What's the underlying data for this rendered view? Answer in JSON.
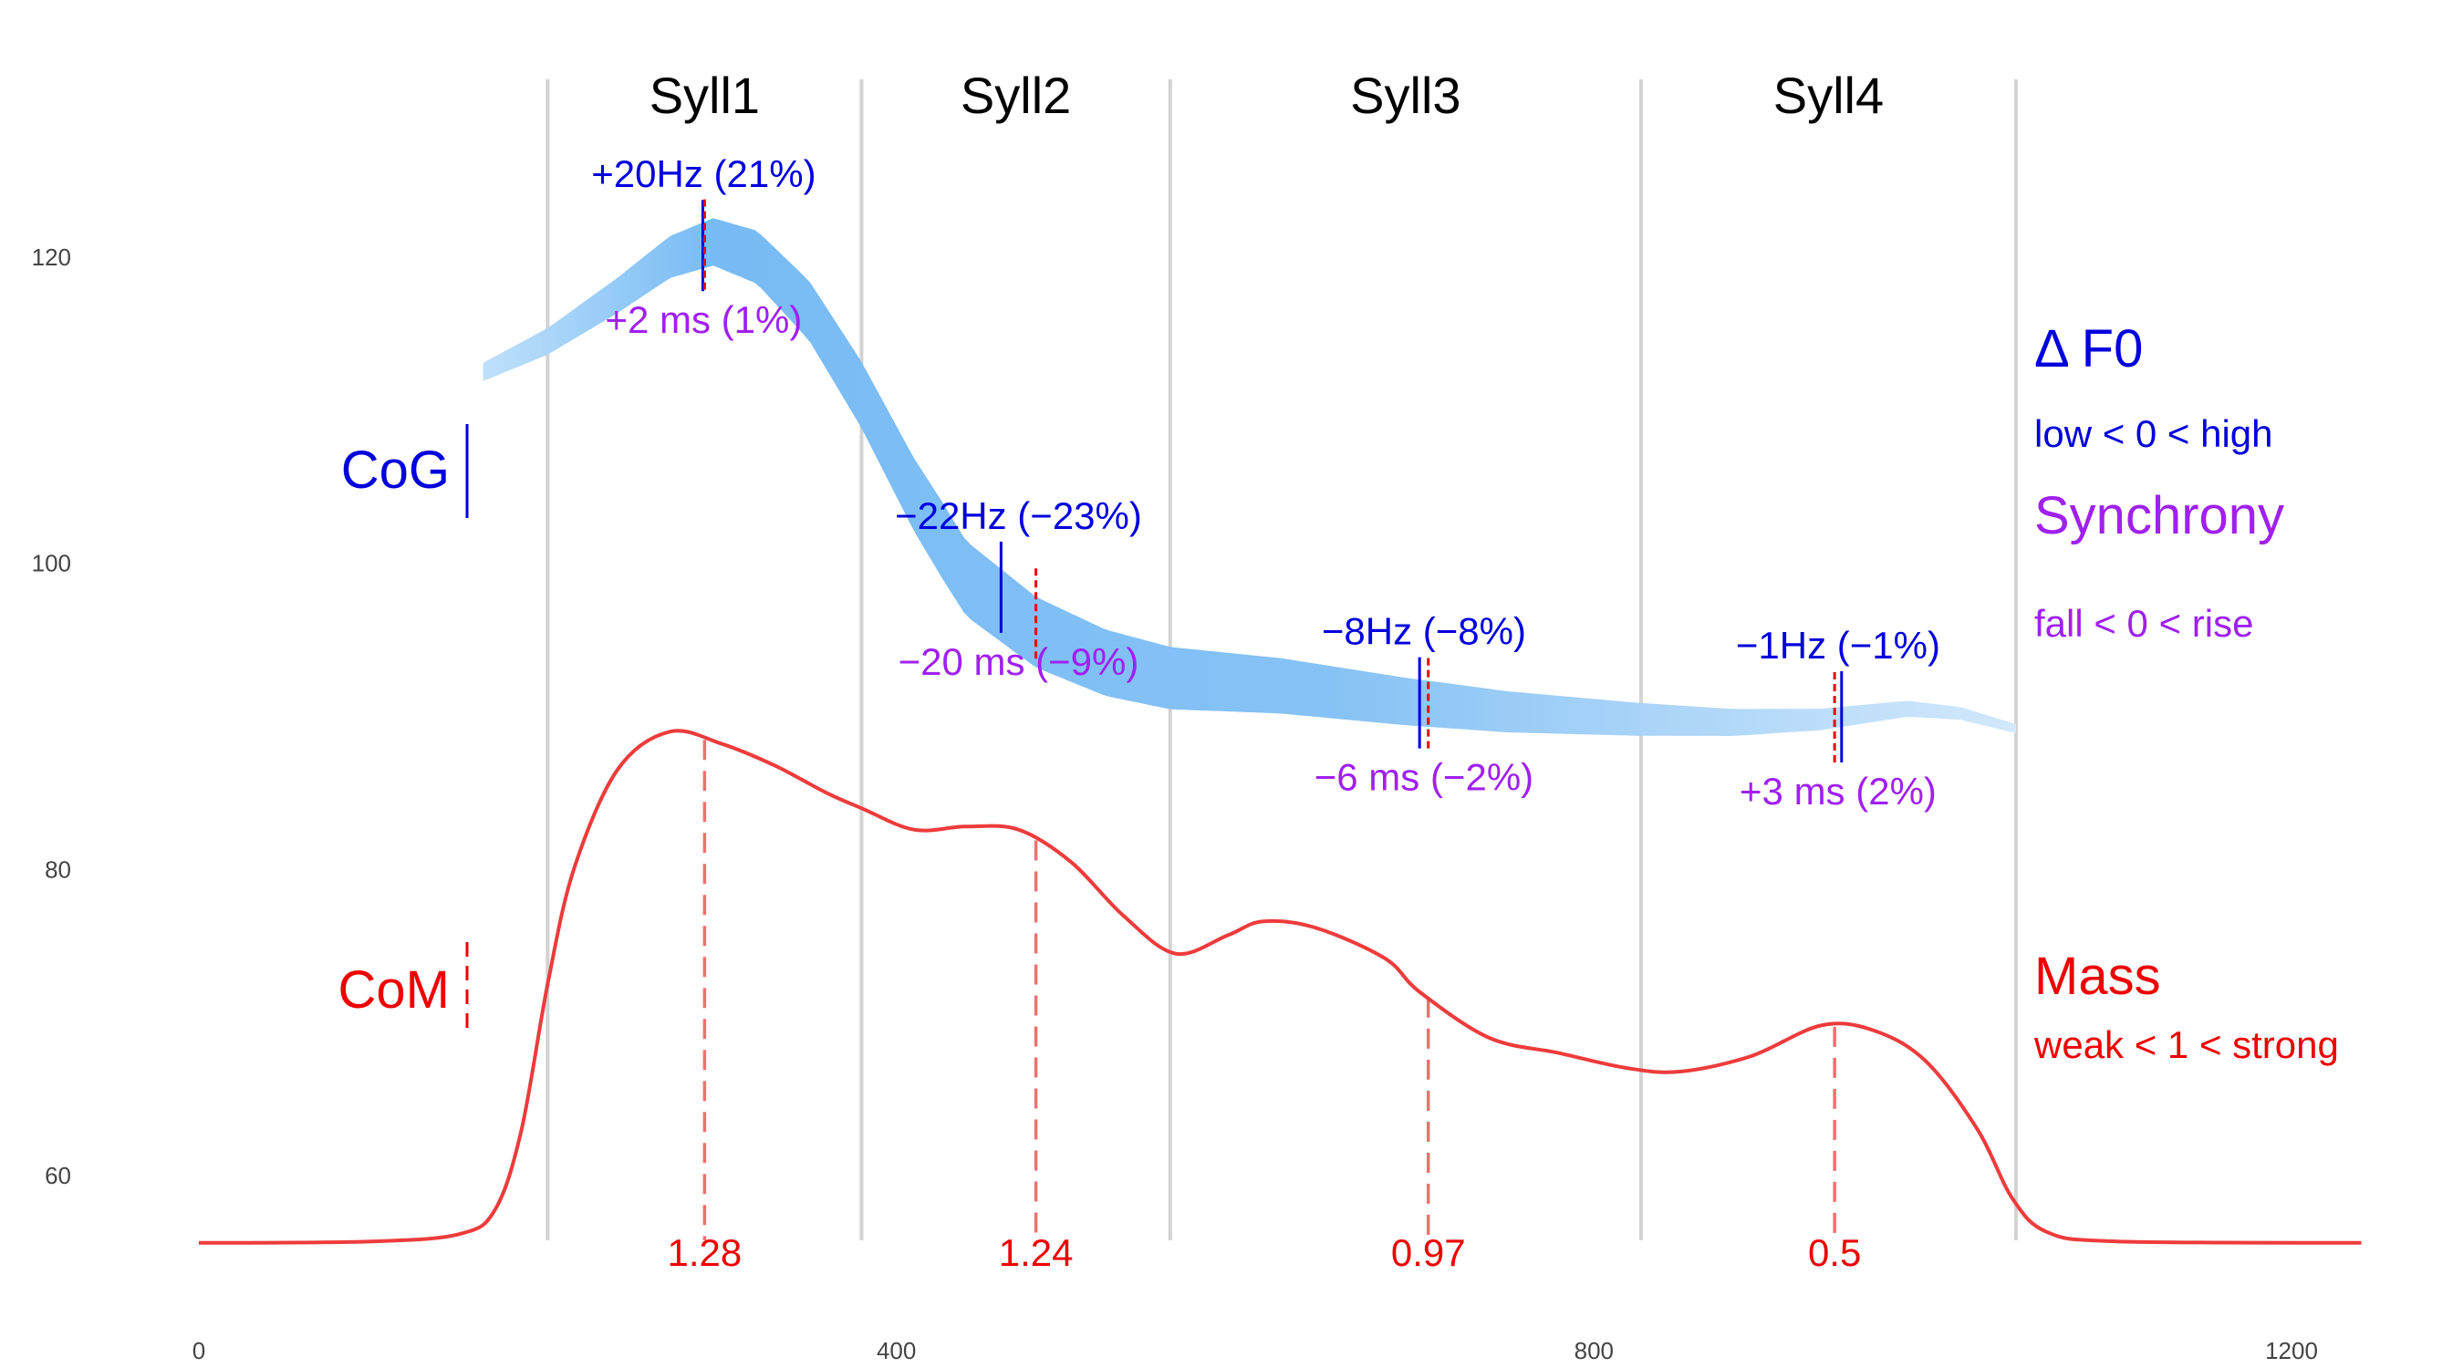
{
  "chart_data": {
    "type": "line",
    "title": "",
    "xlabel": "",
    "ylabel": "",
    "xlim": [
      0,
      1250
    ],
    "ylim": [
      52,
      128
    ],
    "x_ticks": [
      {
        "value": 0,
        "label": "0"
      },
      {
        "value": 400,
        "label": "400"
      },
      {
        "value": 800,
        "label": "800"
      },
      {
        "value": 1200,
        "label": "1200"
      }
    ],
    "y_ticks": [
      {
        "value": 60,
        "label": "60"
      },
      {
        "value": 80,
        "label": "80"
      },
      {
        "value": 100,
        "label": "100"
      },
      {
        "value": 120,
        "label": "120"
      }
    ],
    "grid": false,
    "syllables": [
      {
        "label": "Syll1",
        "start": 200,
        "end": 380
      },
      {
        "label": "Syll2",
        "start": 380,
        "end": 557
      },
      {
        "label": "Syll3",
        "start": 557,
        "end": 827
      },
      {
        "label": "Syll4",
        "start": 827,
        "end": 1042
      }
    ],
    "f0_curve": {
      "color": "#7abcf5",
      "points": [
        [
          163,
          112.5
        ],
        [
          200,
          114.5
        ],
        [
          240,
          117.5
        ],
        [
          270,
          120
        ],
        [
          295,
          121
        ],
        [
          320,
          120
        ],
        [
          350,
          116.5
        ],
        [
          380,
          111
        ],
        [
          410,
          104.5
        ],
        [
          440,
          99
        ],
        [
          480,
          95.5
        ],
        [
          520,
          93.5
        ],
        [
          557,
          92.5
        ],
        [
          620,
          92
        ],
        [
          690,
          91
        ],
        [
          750,
          90.3
        ],
        [
          827,
          89.8
        ],
        [
          880,
          89.6
        ],
        [
          930,
          89.8
        ],
        [
          980,
          90.5
        ],
        [
          1010,
          90.2
        ],
        [
          1042,
          89.2
        ]
      ]
    },
    "mass_curve": {
      "color": "#ee3b3b",
      "points": [
        [
          0,
          55.6
        ],
        [
          100,
          55.7
        ],
        [
          150,
          56.2
        ],
        [
          170,
          57.8
        ],
        [
          185,
          63
        ],
        [
          200,
          72.5
        ],
        [
          215,
          80
        ],
        [
          240,
          86.5
        ],
        [
          270,
          89
        ],
        [
          300,
          88.2
        ],
        [
          330,
          86.8
        ],
        [
          360,
          85
        ],
        [
          380,
          84
        ],
        [
          410,
          82.6
        ],
        [
          440,
          82.8
        ],
        [
          470,
          82.6
        ],
        [
          500,
          80.5
        ],
        [
          530,
          77
        ],
        [
          560,
          74.5
        ],
        [
          590,
          75.7
        ],
        [
          610,
          76.6
        ],
        [
          640,
          76.2
        ],
        [
          680,
          74.2
        ],
        [
          700,
          72
        ],
        [
          740,
          69
        ],
        [
          780,
          68
        ],
        [
          820,
          67
        ],
        [
          850,
          66.8
        ],
        [
          890,
          67.8
        ],
        [
          930,
          69.8
        ],
        [
          960,
          69.5
        ],
        [
          990,
          67.5
        ],
        [
          1020,
          63
        ],
        [
          1040,
          58.5
        ],
        [
          1060,
          56.3
        ],
        [
          1100,
          55.7
        ],
        [
          1240,
          55.6
        ]
      ]
    },
    "cog_markers": [
      {
        "x": 289,
        "f0_label": "+20Hz (21%)",
        "sync_label": "+2 ms (1%)"
      },
      {
        "x": 460,
        "f0_label": "−22Hz (−23%)",
        "sync_label": "−20 ms (−9%)"
      },
      {
        "x": 700,
        "f0_label": "−8Hz (−8%)",
        "sync_label": "−6 ms (−2%)"
      },
      {
        "x": 942,
        "f0_label": "−1Hz (−1%)",
        "sync_label": "+3 ms (2%)"
      }
    ],
    "com_markers": [
      {
        "x": 290,
        "mass_label": "1.28"
      },
      {
        "x": 480,
        "mass_label": "1.24"
      },
      {
        "x": 705,
        "mass_label": "0.97"
      },
      {
        "x": 938,
        "mass_label": "0.5"
      }
    ],
    "axis_labels": {
      "cog": "CoG",
      "com": "CoM"
    },
    "legend": {
      "f0_title": "Δ F0",
      "f0_range": "low < 0 < high",
      "sync_title": "Synchrony",
      "sync_range": "fall < 0 < rise",
      "mass_title": "Mass",
      "mass_range": "weak < 1 < strong"
    },
    "colors": {
      "blue": "#0000dd",
      "purple": "#a020f0",
      "red": "#ee0000",
      "dashed_red": "#f07070",
      "boundary": "#d3d3d3"
    }
  }
}
